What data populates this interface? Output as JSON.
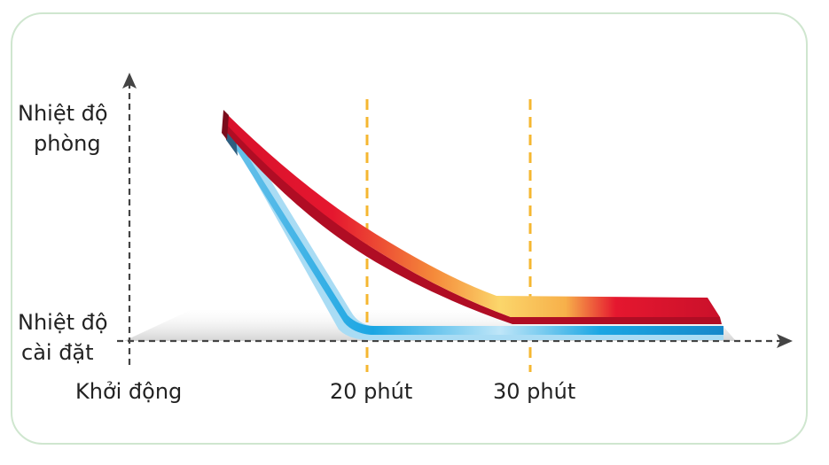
{
  "y_labels": {
    "room_temp_line1": "Nhiệt độ",
    "room_temp_line2": "phòng",
    "set_temp_line1": "Nhiệt độ",
    "set_temp_line2": "cài đặt"
  },
  "x_labels": {
    "start": "Khởi động",
    "minute_20": "20 phút",
    "minute_30": "30 phút"
  },
  "colors": {
    "axis": "#444444",
    "marker": "#f5b731",
    "frame_border": "#cfe6cf",
    "red_curve": "#e5172f",
    "warm_mid": "#fbd66b",
    "blue_curve": "#1aa6e3",
    "light_blue": "#a9dcf4"
  }
}
